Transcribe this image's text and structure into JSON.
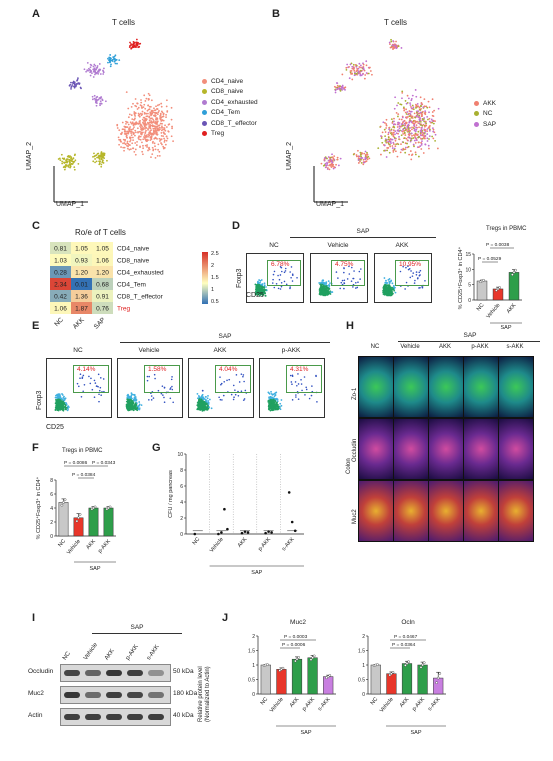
{
  "panels": {
    "A": {
      "label": "A",
      "title": "T cells",
      "axis_x": "UMAP_1",
      "axis_y": "UMAP_2",
      "legend": [
        {
          "name": "CD4_naive",
          "color": "#f28e7b"
        },
        {
          "name": "CD8_naive",
          "color": "#b6b62a"
        },
        {
          "name": "CD4_exhausted",
          "color": "#b07bd0"
        },
        {
          "name": "CD4_Tem",
          "color": "#2f9fd8"
        },
        {
          "name": "CD8_T_effector",
          "color": "#6a55b5"
        },
        {
          "name": "Treg",
          "color": "#e02020"
        }
      ]
    },
    "B": {
      "label": "B",
      "title": "T cells",
      "axis_x": "UMAP_1",
      "axis_y": "UMAP_2",
      "legend": [
        {
          "name": "AKK",
          "color": "#f08070"
        },
        {
          "name": "NC",
          "color": "#a8b030"
        },
        {
          "name": "SAP",
          "color": "#c070d0"
        }
      ]
    },
    "C": {
      "label": "C",
      "title": "Ro/e of T cells",
      "columns": [
        "NC",
        "AKK",
        "SAP"
      ],
      "rows": [
        "CD4_naive",
        "CD8_naive",
        "CD4_exhausted",
        "CD4_Tem",
        "CD8_T_effector",
        "Treg"
      ],
      "values": [
        [
          "0.81",
          "1.05",
          "1.05"
        ],
        [
          "1.03",
          "0.93",
          "1.06"
        ],
        [
          "0.28",
          "1.20",
          "1.20"
        ],
        [
          "2.34",
          "0.01",
          "0.68"
        ],
        [
          "0.42",
          "1.36",
          "0.91"
        ],
        [
          "1.06",
          "1.87",
          "0.76"
        ]
      ],
      "colorbar_ticks": [
        "2.5",
        "2",
        "1.5",
        "1",
        "0.5"
      ]
    },
    "D": {
      "label": "D",
      "group": "SAP",
      "facs_headers": [
        "NC",
        "Vehicle",
        "AKK"
      ],
      "facs_percents": [
        "6.78%",
        "4.75%",
        "10.95%"
      ],
      "axis_x": "CD25",
      "axis_y": "Foxp3",
      "bar_title": "Tregs in PBMC",
      "bar_ylabel": "% CD25⁺Foxp3⁺ in CD4⁺",
      "bar_categories": [
        "NC",
        "Vehicle",
        "AKK"
      ],
      "bar_group": "SAP",
      "pvalues": [
        "P = 0.0038",
        "P = 0.0529"
      ]
    },
    "E": {
      "label": "E",
      "group": "SAP",
      "facs_headers": [
        "NC",
        "Vehicle",
        "AKK",
        "p-AKK"
      ],
      "facs_percents": [
        "4.14%",
        "1.58%",
        "4.04%",
        "4.31%"
      ],
      "axis_x": "CD25",
      "axis_y": "Foxp3"
    },
    "F": {
      "label": "F",
      "title": "Tregs in PBMC",
      "ylabel": "% CD25⁺Foxp3⁺ in CD4⁺",
      "categories": [
        "NC",
        "Vehicle",
        "AKK",
        "p-AKK"
      ],
      "group": "SAP",
      "pvalues": [
        "P = 0.0086",
        "P = 0.0343",
        "P = 0.0384"
      ]
    },
    "G": {
      "label": "G",
      "ylabel": "CFU / mg pancreas",
      "categories": [
        "NC",
        "Vehicle",
        "AKK",
        "p-AKK",
        "s-AKK"
      ],
      "group": "SAP"
    },
    "H": {
      "label": "H",
      "group": "SAP",
      "columns": [
        "NC",
        "Vehicle",
        "AKK",
        "p-AKK",
        "s-AKK"
      ],
      "rows": [
        "Zo-1",
        "Occludin",
        "Muc2"
      ],
      "side_label": "Colon"
    },
    "I": {
      "label": "I",
      "group": "SAP",
      "lanes": [
        "NC",
        "Vehicle",
        "AKK",
        "p-AKK",
        "s-AKK"
      ],
      "bands": [
        {
          "name": "Occludin",
          "size": "50 kDa"
        },
        {
          "name": "Muc2",
          "size": "180 kDa"
        },
        {
          "name": "Actin",
          "size": "40 kDa"
        }
      ]
    },
    "J": {
      "label": "J",
      "ylabel": "Relative protein level\n(Normalized to Actin)",
      "categories": [
        "NC",
        "Vehicle",
        "AKK",
        "p-AKK",
        "s-AKK"
      ],
      "group": "SAP",
      "charts": [
        {
          "title": "Muc2",
          "pvalues": [
            "P = 0.0003",
            "P = 0.0006"
          ]
        },
        {
          "title": "Ocln",
          "pvalues": [
            "P = 0.0467",
            "P = 0.0364"
          ]
        }
      ]
    }
  },
  "chart_data": [
    {
      "type": "bar",
      "panel": "D",
      "title": "Tregs in PBMC",
      "xlabel": "",
      "ylabel": "% CD25⁺Foxp3⁺ in CD4⁺",
      "categories": [
        "NC",
        "Vehicle",
        "AKK"
      ],
      "values": [
        6.2,
        3.6,
        9.0
      ],
      "errors": [
        0.3,
        0.6,
        0.9
      ],
      "ylim": [
        0,
        15
      ],
      "yticks": [
        0,
        5,
        10,
        15
      ],
      "colors": [
        "#c8c8c8",
        "#e8362a",
        "#2e9e4a"
      ]
    },
    {
      "type": "bar",
      "panel": "F",
      "title": "Tregs in PBMC",
      "xlabel": "",
      "ylabel": "% CD25⁺Foxp3⁺ in CD4⁺",
      "categories": [
        "NC",
        "Vehicle",
        "AKK",
        "p-AKK"
      ],
      "values": [
        4.8,
        2.6,
        4.0,
        4.0
      ],
      "errors": [
        0.5,
        0.6,
        0.2,
        0.2
      ],
      "ylim": [
        0,
        8
      ],
      "yticks": [
        0,
        2,
        4,
        6,
        8
      ],
      "colors": [
        "#c8c8c8",
        "#e8362a",
        "#2e9e4a",
        "#2e9e4a"
      ]
    },
    {
      "type": "scatter",
      "panel": "G",
      "ylabel": "CFU / mg pancreas",
      "categories": [
        "NC",
        "Vehicle",
        "AKK",
        "p-AKK",
        "s-AKK"
      ],
      "ylim": [
        0,
        10
      ],
      "yticks": [
        0,
        2,
        4,
        6,
        8,
        10
      ],
      "points": [
        [
          0,
          0.0
        ],
        [
          1,
          0.0
        ],
        [
          1,
          0.2
        ],
        [
          1,
          3.1
        ],
        [
          1,
          0.6
        ],
        [
          2,
          0.1
        ],
        [
          2,
          0.3
        ],
        [
          2,
          0.2
        ],
        [
          3,
          0.1
        ],
        [
          3,
          0.3
        ],
        [
          3,
          0.2
        ],
        [
          4,
          5.2
        ],
        [
          4,
          1.5
        ],
        [
          4,
          0.4
        ]
      ]
    },
    {
      "type": "bar",
      "panel": "J",
      "title": "Muc2",
      "ylabel": "Relative protein level (Normalized to Actin)",
      "categories": [
        "NC",
        "Vehicle",
        "AKK",
        "p-AKK",
        "s-AKK"
      ],
      "values": [
        1.0,
        0.85,
        1.2,
        1.25,
        0.6
      ],
      "errors": [
        0.02,
        0.05,
        0.08,
        0.08,
        0.05
      ],
      "ylim": [
        0,
        2.0
      ],
      "yticks": [
        0,
        0.5,
        1.0,
        1.5,
        2.0
      ],
      "colors": [
        "#c8c8c8",
        "#e8362a",
        "#2e9e4a",
        "#2e9e4a",
        "#c87fe0"
      ]
    },
    {
      "type": "bar",
      "panel": "J",
      "title": "Ocln",
      "ylabel": "Relative protein level (Normalized to Actin)",
      "categories": [
        "NC",
        "Vehicle",
        "AKK",
        "p-AKK",
        "s-AKK"
      ],
      "values": [
        1.0,
        0.7,
        1.05,
        1.0,
        0.55
      ],
      "errors": [
        0.02,
        0.06,
        0.08,
        0.1,
        0.2
      ],
      "ylim": [
        0,
        2.0
      ],
      "yticks": [
        0,
        0.5,
        1.0,
        1.5,
        2.0
      ],
      "colors": [
        "#c8c8c8",
        "#e8362a",
        "#2e9e4a",
        "#2e9e4a",
        "#c87fe0"
      ]
    }
  ]
}
